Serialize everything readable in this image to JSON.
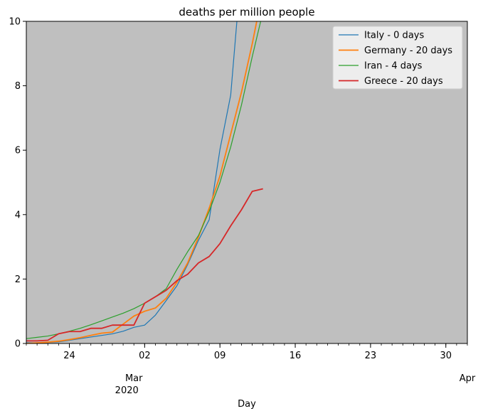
{
  "chart_data": {
    "type": "line",
    "title": "deaths per million people",
    "xlabel": "Day",
    "ylabel": "",
    "xlim": [
      "2020-02-20",
      "2020-04-01"
    ],
    "ylim": [
      0,
      10
    ],
    "yticks": [
      0,
      2,
      4,
      6,
      8,
      10
    ],
    "xticks": [
      {
        "date": "2020-02-24",
        "label": "24"
      },
      {
        "date": "2020-03-02",
        "label": "02"
      },
      {
        "date": "2020-03-09",
        "label": "09"
      },
      {
        "date": "2020-03-16",
        "label": "16"
      },
      {
        "date": "2020-03-23",
        "label": "23"
      },
      {
        "date": "2020-03-30",
        "label": "30"
      }
    ],
    "month_labels": [
      {
        "date": "2020-03-01",
        "label": "Mar",
        "year": "2020"
      },
      {
        "date": "2020-04-01",
        "label": "Apr",
        "year": ""
      }
    ],
    "grid": false,
    "legend": "top-right",
    "background": "#bfbfbf",
    "series": [
      {
        "name": "Italy - 0 days",
        "color": "#1f77b4",
        "width": 1.2,
        "points": [
          [
            "2020-02-20",
            0.02
          ],
          [
            "2020-02-21",
            0.02
          ],
          [
            "2020-02-22",
            0.03
          ],
          [
            "2020-02-23",
            0.05
          ],
          [
            "2020-02-24",
            0.1
          ],
          [
            "2020-02-25",
            0.15
          ],
          [
            "2020-02-26",
            0.2
          ],
          [
            "2020-02-27",
            0.25
          ],
          [
            "2020-02-28",
            0.3
          ],
          [
            "2020-02-29",
            0.38
          ],
          [
            "2020-03-01",
            0.5
          ],
          [
            "2020-03-02",
            0.57
          ],
          [
            "2020-03-03",
            0.88
          ],
          [
            "2020-03-04",
            1.33
          ],
          [
            "2020-03-05",
            1.79
          ],
          [
            "2020-03-06",
            2.45
          ],
          [
            "2020-03-07",
            3.2
          ],
          [
            "2020-03-08",
            3.84
          ],
          [
            "2020-03-09",
            6.02
          ],
          [
            "2020-03-10",
            7.71
          ],
          [
            "2020-03-10.7",
            10.5
          ]
        ]
      },
      {
        "name": "Germany - 20 days",
        "color": "#ff7f0e",
        "width": 1.8,
        "points": [
          [
            "2020-02-20",
            0.0
          ],
          [
            "2020-02-21",
            0.02
          ],
          [
            "2020-02-22",
            0.04
          ],
          [
            "2020-02-23",
            0.07
          ],
          [
            "2020-02-24",
            0.12
          ],
          [
            "2020-02-25",
            0.18
          ],
          [
            "2020-02-26",
            0.25
          ],
          [
            "2020-02-27",
            0.32
          ],
          [
            "2020-02-28",
            0.35
          ],
          [
            "2020-02-29",
            0.6
          ],
          [
            "2020-03-01",
            0.85
          ],
          [
            "2020-03-02",
            1.0
          ],
          [
            "2020-03-03",
            1.1
          ],
          [
            "2020-03-04",
            1.4
          ],
          [
            "2020-03-05",
            1.9
          ],
          [
            "2020-03-06",
            2.5
          ],
          [
            "2020-03-07",
            3.3
          ],
          [
            "2020-03-08",
            4.2
          ],
          [
            "2020-03-09",
            5.2
          ],
          [
            "2020-03-10",
            6.5
          ],
          [
            "2020-03-11",
            7.8
          ],
          [
            "2020-03-12",
            9.3
          ],
          [
            "2020-03-12.6",
            10.3
          ]
        ]
      },
      {
        "name": "Iran - 4 days",
        "color": "#2ca02c",
        "width": 1.2,
        "points": [
          [
            "2020-02-20",
            0.15
          ],
          [
            "2020-02-21",
            0.19
          ],
          [
            "2020-02-22",
            0.23
          ],
          [
            "2020-02-23",
            0.3
          ],
          [
            "2020-02-24",
            0.38
          ],
          [
            "2020-02-25",
            0.47
          ],
          [
            "2020-02-26",
            0.58
          ],
          [
            "2020-02-27",
            0.7
          ],
          [
            "2020-02-28",
            0.82
          ],
          [
            "2020-02-29",
            0.94
          ],
          [
            "2020-03-01",
            1.08
          ],
          [
            "2020-03-02",
            1.25
          ],
          [
            "2020-03-03",
            1.45
          ],
          [
            "2020-03-04",
            1.7
          ],
          [
            "2020-03-05",
            2.3
          ],
          [
            "2020-03-06",
            2.85
          ],
          [
            "2020-03-07",
            3.35
          ],
          [
            "2020-03-08",
            4.1
          ],
          [
            "2020-03-09",
            5.0
          ],
          [
            "2020-03-10",
            6.1
          ],
          [
            "2020-03-11",
            7.4
          ],
          [
            "2020-03-12",
            8.9
          ],
          [
            "2020-03-13",
            10.3
          ]
        ]
      },
      {
        "name": "Greece - 20 days",
        "color": "#d62728",
        "width": 1.8,
        "points": [
          [
            "2020-02-20",
            0.08
          ],
          [
            "2020-02-21",
            0.08
          ],
          [
            "2020-02-22",
            0.1
          ],
          [
            "2020-02-23",
            0.3
          ],
          [
            "2020-02-24",
            0.37
          ],
          [
            "2020-02-25",
            0.37
          ],
          [
            "2020-02-26",
            0.47
          ],
          [
            "2020-02-27",
            0.47
          ],
          [
            "2020-02-28",
            0.57
          ],
          [
            "2020-02-29",
            0.57
          ],
          [
            "2020-03-01",
            0.57
          ],
          [
            "2020-03-02",
            1.25
          ],
          [
            "2020-03-03",
            1.45
          ],
          [
            "2020-03-04",
            1.65
          ],
          [
            "2020-03-05",
            1.95
          ],
          [
            "2020-03-06",
            2.15
          ],
          [
            "2020-03-07",
            2.5
          ],
          [
            "2020-03-08",
            2.7
          ],
          [
            "2020-03-09",
            3.1
          ],
          [
            "2020-03-10",
            3.65
          ],
          [
            "2020-03-11",
            4.15
          ],
          [
            "2020-03-12",
            4.72
          ],
          [
            "2020-03-13",
            4.8
          ]
        ]
      }
    ]
  }
}
